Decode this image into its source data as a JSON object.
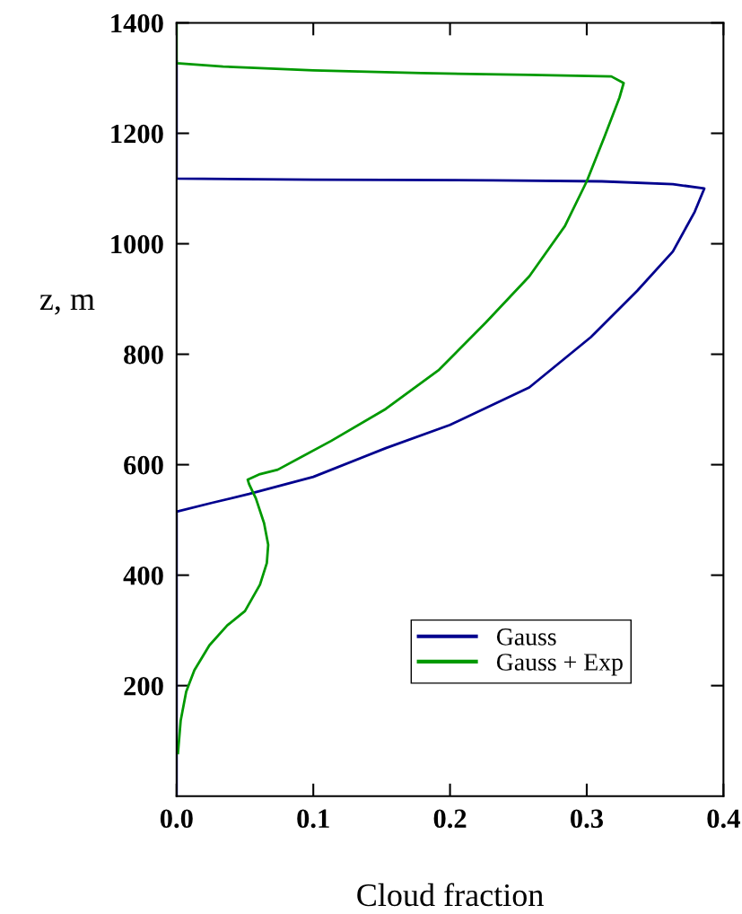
{
  "chart_data": {
    "type": "line",
    "xlabel": "Cloud fraction",
    "ylabel": "z, m",
    "xlim": [
      0,
      0.4
    ],
    "xticks": [
      {
        "value": 0,
        "label": "0.0"
      },
      0.1,
      0.2,
      0.3,
      0.4
    ],
    "ylim": [
      0,
      1400
    ],
    "yticks": [
      200,
      400,
      600,
      800,
      1000,
      1200,
      1400
    ],
    "legend": "bottom",
    "grid": false,
    "marker": "none",
    "line_style": "solid",
    "series": [
      {
        "name": "Gauss",
        "color": "#00008e",
        "x": [
          0,
          0,
          0.026,
          0.053,
          0.1,
          0.153,
          0.2,
          0.258,
          0.303,
          0.337,
          0.363,
          0.379,
          0.386,
          0.363,
          0.311,
          0.232,
          0.1,
          0,
          0
        ],
        "values": [
          0,
          515,
          531,
          547,
          578,
          630,
          672,
          740,
          831,
          915,
          986,
          1058,
          1100,
          1108,
          1113,
          1115,
          1116,
          1118,
          1330
        ]
      },
      {
        "name": "Gauss + Exp",
        "color": "#009900",
        "x": [
          0.001,
          0.003,
          0.007,
          0.013,
          0.024,
          0.037,
          0.05,
          0.061,
          0.066,
          0.067,
          0.064,
          0.058,
          0.053,
          0.052,
          0.061,
          0.074,
          0.113,
          0.153,
          0.192,
          0.226,
          0.258,
          0.284,
          0.3,
          0.313,
          0.324,
          0.327,
          0.318,
          0.258,
          0.179,
          0.1,
          0.034,
          0,
          0
        ],
        "values": [
          78,
          137,
          189,
          228,
          273,
          309,
          335,
          383,
          422,
          455,
          494,
          539,
          565,
          573,
          583,
          591,
          643,
          701,
          772,
          857,
          941,
          1032,
          1113,
          1194,
          1265,
          1291,
          1303,
          1306,
          1309,
          1314,
          1321,
          1327,
          1400
        ]
      }
    ]
  }
}
